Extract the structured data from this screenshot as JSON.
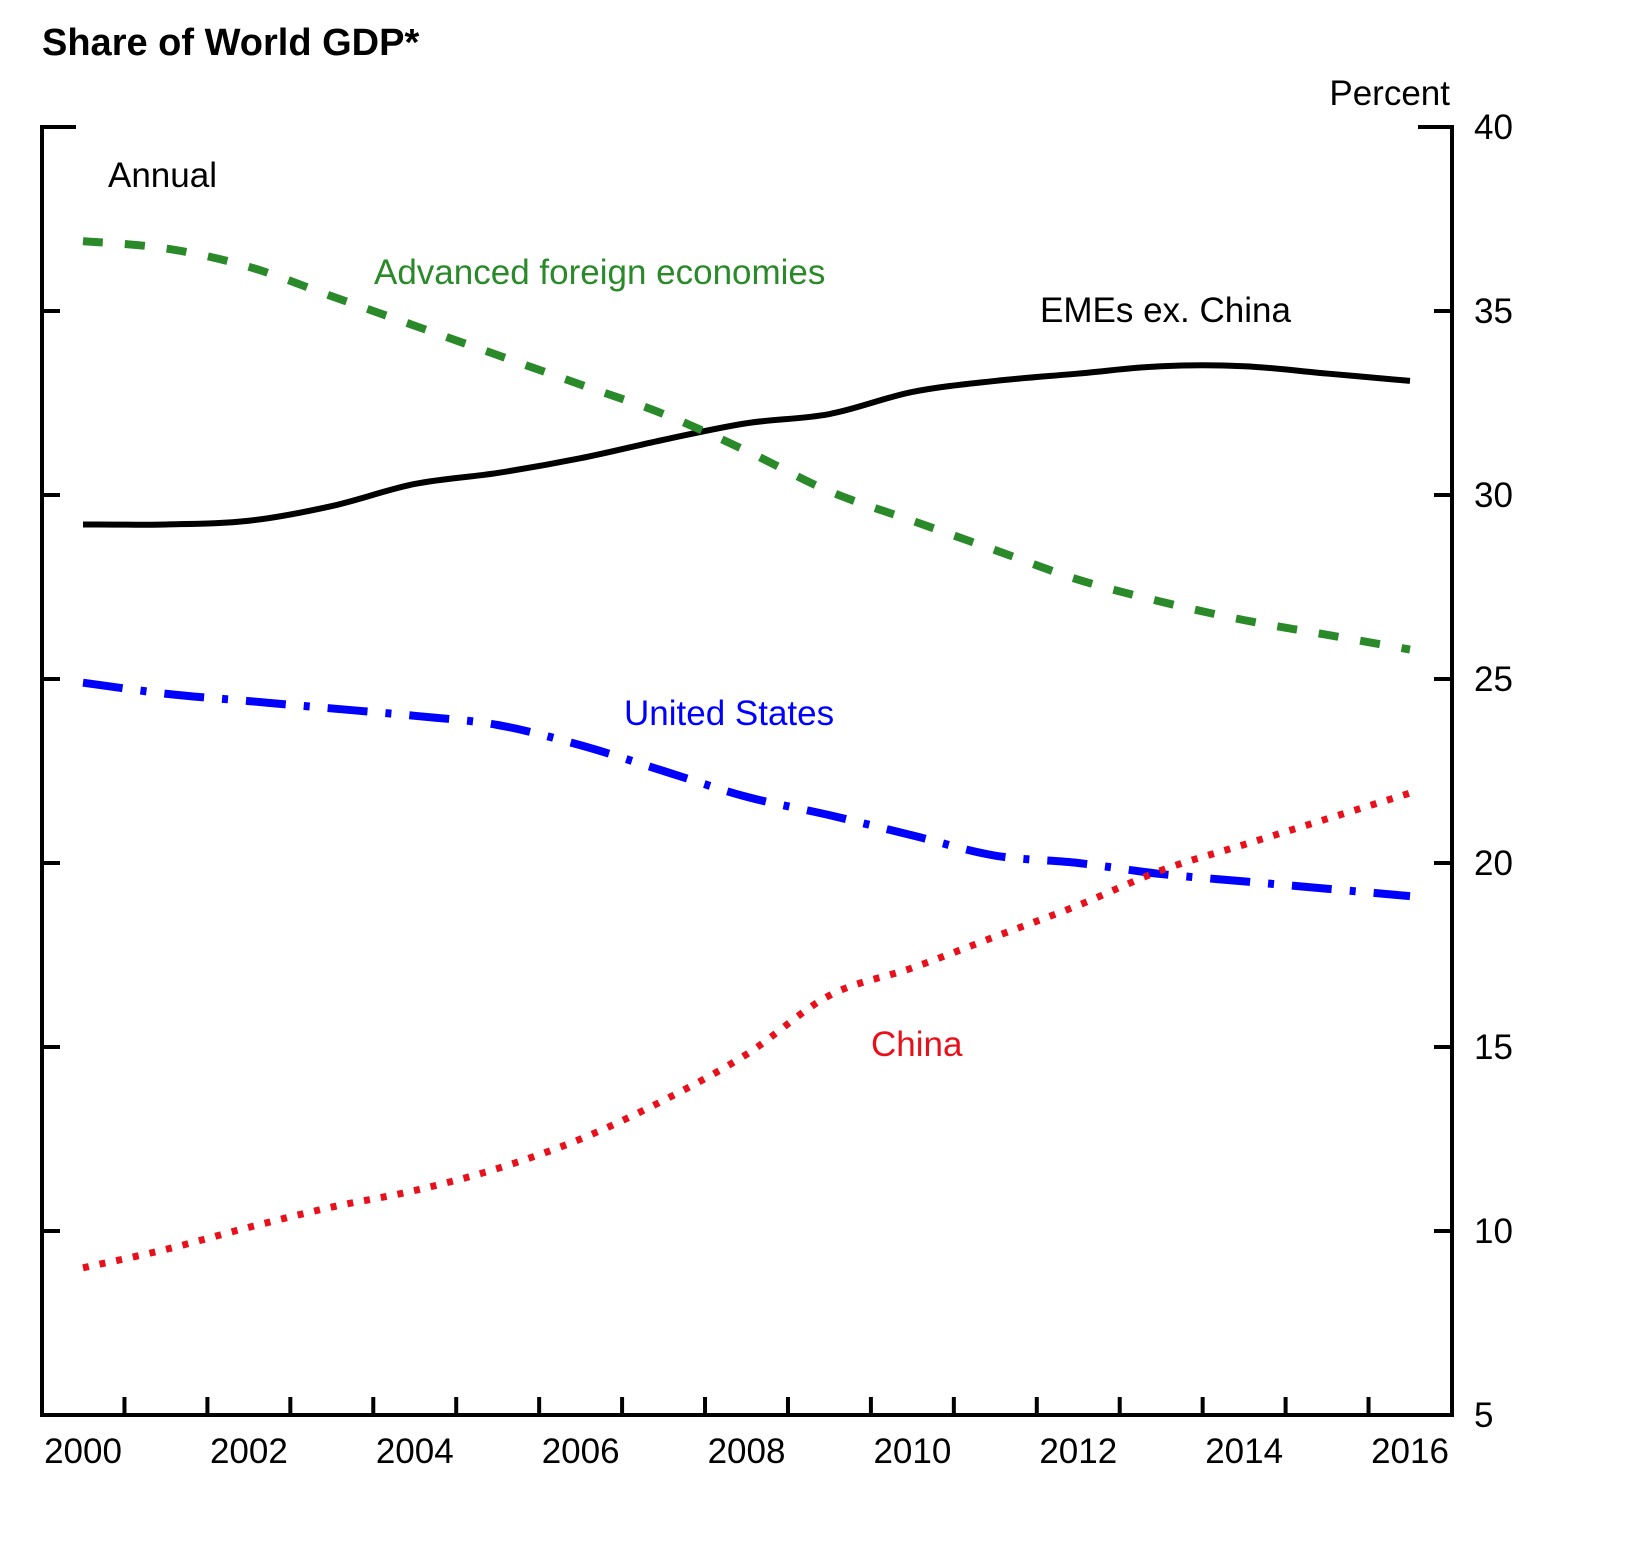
{
  "chart_data": {
    "type": "line",
    "title": "Share of World GDP*",
    "frequency_note": "Annual",
    "ylabel": "Percent",
    "xlabel": "",
    "ylim": [
      5,
      40
    ],
    "yticks": [
      5,
      10,
      15,
      20,
      25,
      30,
      35,
      40
    ],
    "xlim": [
      2000,
      2016
    ],
    "xtick_labels": [
      "2000",
      "2002",
      "2004",
      "2006",
      "2008",
      "2010",
      "2012",
      "2014",
      "2016"
    ],
    "y_axis_side": "right",
    "grid": false,
    "legend": "inline labels",
    "x": [
      2000,
      2001,
      2002,
      2003,
      2004,
      2005,
      2006,
      2007,
      2008,
      2009,
      2010,
      2011,
      2012,
      2013,
      2014,
      2015,
      2016
    ],
    "series": [
      {
        "name": "EMEs ex. China",
        "color": "#000000",
        "style": "solid",
        "values": [
          29.2,
          29.2,
          29.3,
          29.7,
          30.3,
          30.6,
          31.0,
          31.5,
          31.95,
          32.2,
          32.8,
          33.1,
          33.3,
          33.5,
          33.5,
          33.3,
          33.1
        ]
      },
      {
        "name": "Advanced foreign economies",
        "color": "#2a8a2a",
        "style": "dashed",
        "values": [
          36.9,
          36.7,
          36.2,
          35.4,
          34.6,
          33.8,
          33.0,
          32.2,
          31.2,
          30.1,
          29.3,
          28.5,
          27.7,
          27.1,
          26.6,
          26.2,
          25.8
        ]
      },
      {
        "name": "United States",
        "color": "#0000ff",
        "style": "dash-dot",
        "values": [
          24.9,
          24.6,
          24.4,
          24.2,
          24.0,
          23.75,
          23.2,
          22.5,
          21.8,
          21.3,
          20.75,
          20.2,
          20.0,
          19.7,
          19.5,
          19.3,
          19.1
        ]
      },
      {
        "name": "China",
        "color": "#e8101a",
        "style": "dotted",
        "values": [
          9.0,
          9.5,
          10.1,
          10.65,
          11.1,
          11.7,
          12.5,
          13.55,
          14.8,
          16.4,
          17.15,
          18.0,
          18.85,
          19.8,
          20.5,
          21.2,
          21.9
        ]
      }
    ],
    "annotations": [
      {
        "text": "Annual",
        "color": "#000000"
      },
      {
        "text": "Advanced foreign economies",
        "color": "#2a8a2a"
      },
      {
        "text": "EMEs ex. China",
        "color": "#000000"
      },
      {
        "text": "United States",
        "color": "#0000ff"
      },
      {
        "text": "China",
        "color": "#e8101a"
      }
    ]
  }
}
